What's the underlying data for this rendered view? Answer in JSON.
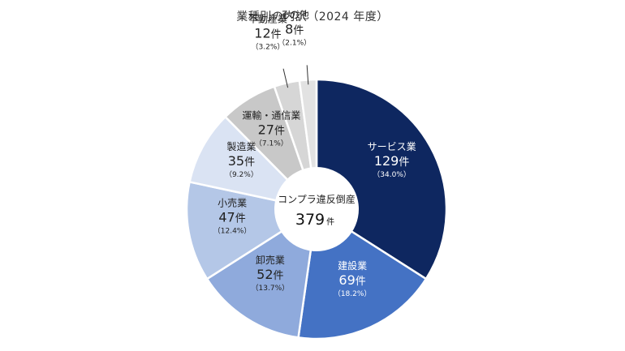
{
  "chart_data": {
    "type": "pie",
    "title": "業種別の内訳（2024 年度）",
    "center_label": "コンプラ違反倒産",
    "center_total": "379",
    "center_unit": "件",
    "unit": "件",
    "slices": [
      {
        "name": "サービス業",
        "value": 129,
        "pct": "（34.0%）",
        "color": "#0e2760",
        "text_color": "#ffffff"
      },
      {
        "name": "建設業",
        "value": 69,
        "pct": "（18.2%）",
        "color": "#4472c4",
        "text_color": "#ffffff"
      },
      {
        "name": "卸売業",
        "value": 52,
        "pct": "（13.7%）",
        "color": "#8faadc",
        "text_color": "#222222"
      },
      {
        "name": "小売業",
        "value": 47,
        "pct": "（12.4%）",
        "color": "#b4c7e7",
        "text_color": "#222222"
      },
      {
        "name": "製造業",
        "value": 35,
        "pct": "（9.2%）",
        "color": "#dae3f3",
        "text_color": "#222222"
      },
      {
        "name": "運輸・通信業",
        "value": 27,
        "pct": "（7.1%）",
        "color": "#c8c8c8",
        "text_color": "#222222"
      },
      {
        "name": "不動産業",
        "value": 12,
        "pct": "（3.2%）",
        "color": "#d6d6d6",
        "text_color": "#222222"
      },
      {
        "name": "その他",
        "value": 8,
        "pct": "（2.1%）",
        "color": "#e2e2e2",
        "text_color": "#222222"
      }
    ]
  }
}
